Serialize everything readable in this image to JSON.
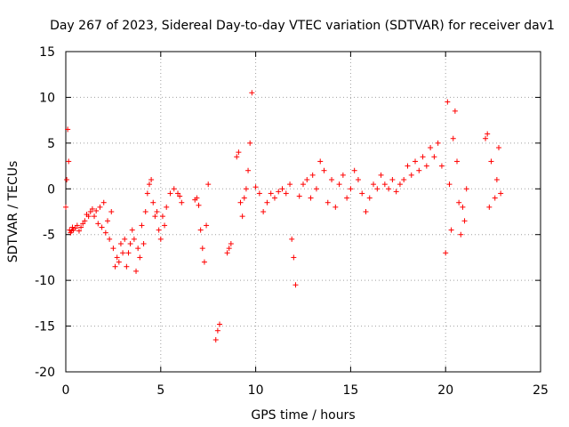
{
  "chart_data": {
    "type": "scatter",
    "title": "Day 267 of 2023, Sidereal Day-to-day VTEC variation (SDTVAR) for receiver dav1",
    "xlabel": "GPS time / hours",
    "ylabel": "SDTVAR / TECUs",
    "xlim": [
      0,
      25
    ],
    "ylim": [
      -20,
      15
    ],
    "xticks": [
      0,
      5,
      10,
      15,
      20,
      25
    ],
    "yticks": [
      -20,
      -15,
      -10,
      -5,
      0,
      5,
      10,
      15
    ],
    "grid": true,
    "marker": "+",
    "series": [
      {
        "name": "SDTVAR",
        "color": "#ff0000",
        "x": [
          0.0,
          0.05,
          0.1,
          0.15,
          0.2,
          0.25,
          0.3,
          0.35,
          0.4,
          0.5,
          0.6,
          0.7,
          0.8,
          0.9,
          1.0,
          1.1,
          1.2,
          1.3,
          1.4,
          1.5,
          1.6,
          1.7,
          1.8,
          1.9,
          2.0,
          2.1,
          2.2,
          2.3,
          2.4,
          2.5,
          2.6,
          2.7,
          2.8,
          2.9,
          3.0,
          3.1,
          3.2,
          3.3,
          3.4,
          3.5,
          3.6,
          3.7,
          3.8,
          3.9,
          4.0,
          4.1,
          4.2,
          4.3,
          4.4,
          4.5,
          4.6,
          4.7,
          4.8,
          4.9,
          5.0,
          5.1,
          5.2,
          5.3,
          5.5,
          5.7,
          5.9,
          6.0,
          6.1,
          6.8,
          6.9,
          7.0,
          7.1,
          7.2,
          7.3,
          7.4,
          7.5,
          7.9,
          8.0,
          8.1,
          8.5,
          8.6,
          8.7,
          9.0,
          9.1,
          9.2,
          9.3,
          9.4,
          9.5,
          9.6,
          9.7,
          9.8,
          10.0,
          10.2,
          10.4,
          10.6,
          10.8,
          11.0,
          11.2,
          11.4,
          11.6,
          11.8,
          11.9,
          12.0,
          12.1,
          12.3,
          12.5,
          12.7,
          12.9,
          13.0,
          13.2,
          13.4,
          13.6,
          13.8,
          14.0,
          14.2,
          14.4,
          14.6,
          14.8,
          15.0,
          15.2,
          15.4,
          15.6,
          15.8,
          16.0,
          16.2,
          16.4,
          16.6,
          16.8,
          17.0,
          17.2,
          17.4,
          17.6,
          17.8,
          18.0,
          18.2,
          18.4,
          18.6,
          18.8,
          19.0,
          19.2,
          19.4,
          19.6,
          19.8,
          20.0,
          20.1,
          20.2,
          20.3,
          20.4,
          20.5,
          20.6,
          20.7,
          20.8,
          20.9,
          21.0,
          21.1,
          22.1,
          22.2,
          22.3,
          22.4,
          22.6,
          22.7,
          22.8,
          22.9
        ],
        "y": [
          -2.0,
          1.0,
          6.5,
          3.0,
          -4.5,
          -4.8,
          -4.6,
          -4.2,
          -4.5,
          -4.3,
          -4.0,
          -4.6,
          -4.2,
          -3.8,
          -3.5,
          -2.8,
          -3.0,
          -2.5,
          -2.2,
          -3.0,
          -2.4,
          -3.8,
          -2.0,
          -4.2,
          -1.5,
          -4.8,
          -3.5,
          -5.5,
          -2.5,
          -6.5,
          -8.5,
          -7.5,
          -8.0,
          -6.0,
          -7.0,
          -5.5,
          -8.5,
          -7.0,
          -6.0,
          -4.5,
          -5.5,
          -9.0,
          -6.5,
          -7.5,
          -4.0,
          -6.0,
          -2.5,
          -0.5,
          0.5,
          1.0,
          -1.5,
          -3.0,
          -2.5,
          -4.5,
          -5.5,
          -3.0,
          -4.0,
          -2.0,
          -0.5,
          0.0,
          -0.5,
          -0.8,
          -1.5,
          -1.2,
          -1.0,
          -1.8,
          -4.5,
          -6.5,
          -8.0,
          -4.0,
          0.5,
          -16.5,
          -15.5,
          -14.8,
          -7.0,
          -6.5,
          -6.0,
          3.5,
          4.0,
          -1.5,
          -3.0,
          -1.0,
          0.0,
          2.0,
          5.0,
          10.5,
          0.2,
          -0.5,
          -2.5,
          -1.5,
          -0.5,
          -1.0,
          -0.3,
          0.0,
          -0.5,
          0.5,
          -5.5,
          -7.5,
          -10.5,
          -0.8,
          0.5,
          1.0,
          -1.0,
          1.5,
          0.0,
          3.0,
          2.0,
          -1.5,
          1.0,
          -2.0,
          0.5,
          1.5,
          -1.0,
          0.0,
          2.0,
          1.0,
          -0.5,
          -2.5,
          -1.0,
          0.5,
          0.0,
          1.5,
          0.5,
          0.0,
          1.0,
          -0.3,
          0.5,
          1.0,
          2.5,
          1.5,
          3.0,
          2.0,
          3.5,
          2.5,
          4.5,
          3.5,
          5.0,
          2.5,
          -7.0,
          9.5,
          0.5,
          -4.5,
          5.5,
          8.5,
          3.0,
          -1.5,
          -5.0,
          -2.0,
          -3.5,
          0.0,
          5.5,
          6.0,
          -2.0,
          3.0,
          -1.0,
          1.0,
          4.5,
          -0.5
        ]
      }
    ]
  }
}
